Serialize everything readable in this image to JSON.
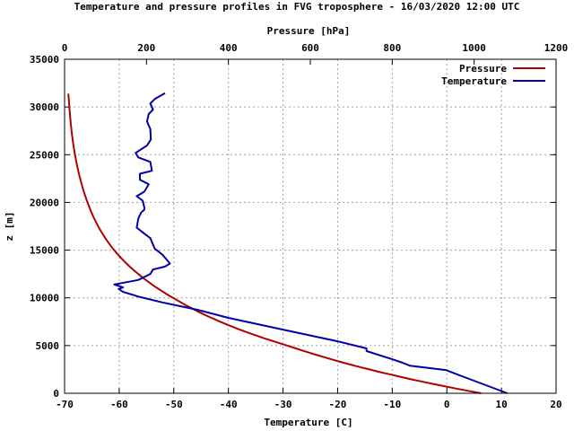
{
  "chart_data": {
    "type": "line",
    "title": "Temperature and pressure profiles in FVG troposphere - 16/03/2020 12:00 UTC",
    "xlabel": "Temperature [C]",
    "x2label": "Pressure [hPa]",
    "ylabel": "z [m]",
    "xlim": [
      -70,
      20
    ],
    "x2lim": [
      0,
      1200
    ],
    "ylim": [
      0,
      35000
    ],
    "xticks": [
      "-70",
      "-60",
      "-50",
      "-40",
      "-30",
      "-20",
      "-10",
      "0",
      "10",
      "20"
    ],
    "x2ticks": [
      "0",
      "200",
      "400",
      "600",
      "800",
      "1000",
      "1200"
    ],
    "yticks": [
      "0",
      "5000",
      "10000",
      "15000",
      "20000",
      "25000",
      "30000",
      "35000"
    ],
    "grid": true,
    "legend": "top-right",
    "colors": {
      "Pressure": "#b00000",
      "Temperature": "#0000a8"
    },
    "series": [
      {
        "name": "Pressure",
        "axis": "x2",
        "x": [
          1017,
          744,
          544,
          380,
          265,
          180,
          121,
          82,
          56,
          38,
          25.5,
          17,
          11.7,
          9.3
        ],
        "z": [
          0,
          2500,
          5000,
          7500,
          10000,
          12500,
          15000,
          17500,
          20000,
          22500,
          25000,
          27500,
          30000,
          31400
        ]
      },
      {
        "name": "Temperature",
        "axis": "x",
        "x": [
          11.1,
          5.4,
          -0.2,
          -6.8,
          -8.1,
          -10,
          -14.7,
          -14.7,
          -20,
          -30,
          -40,
          -45.6,
          -52.1,
          -56.6,
          -59.3,
          -60.1,
          -59.3,
          -60.9,
          -56.5,
          -54.3,
          -53.8,
          -51.6,
          -50.7,
          -52.1,
          -53.5,
          -54.3,
          -55.4,
          -56.8,
          -56.5,
          -56.0,
          -55.4,
          -55.4,
          -55.7,
          -56.8,
          -55.4,
          -54.6,
          -56.2,
          -56.2,
          -54.0,
          -54.3,
          -56.5,
          -57.0,
          -54.9,
          -54.2,
          -54.3,
          -54.9,
          -54.6,
          -53.8,
          -54.3,
          -53.5,
          -51.6
        ],
        "z": [
          0,
          1220,
          2440,
          2900,
          3200,
          3570,
          4420,
          4700,
          5450,
          6670,
          7900,
          8740,
          9520,
          10150,
          10620,
          10930,
          11090,
          11400,
          11870,
          12500,
          12970,
          13280,
          13600,
          14540,
          15160,
          16260,
          16730,
          17360,
          18300,
          18920,
          19240,
          19500,
          20180,
          20650,
          21120,
          21900,
          22370,
          23000,
          23310,
          24250,
          24720,
          25190,
          25970,
          26600,
          27700,
          28480,
          29260,
          29730,
          30360,
          30830,
          31450
        ]
      }
    ]
  }
}
